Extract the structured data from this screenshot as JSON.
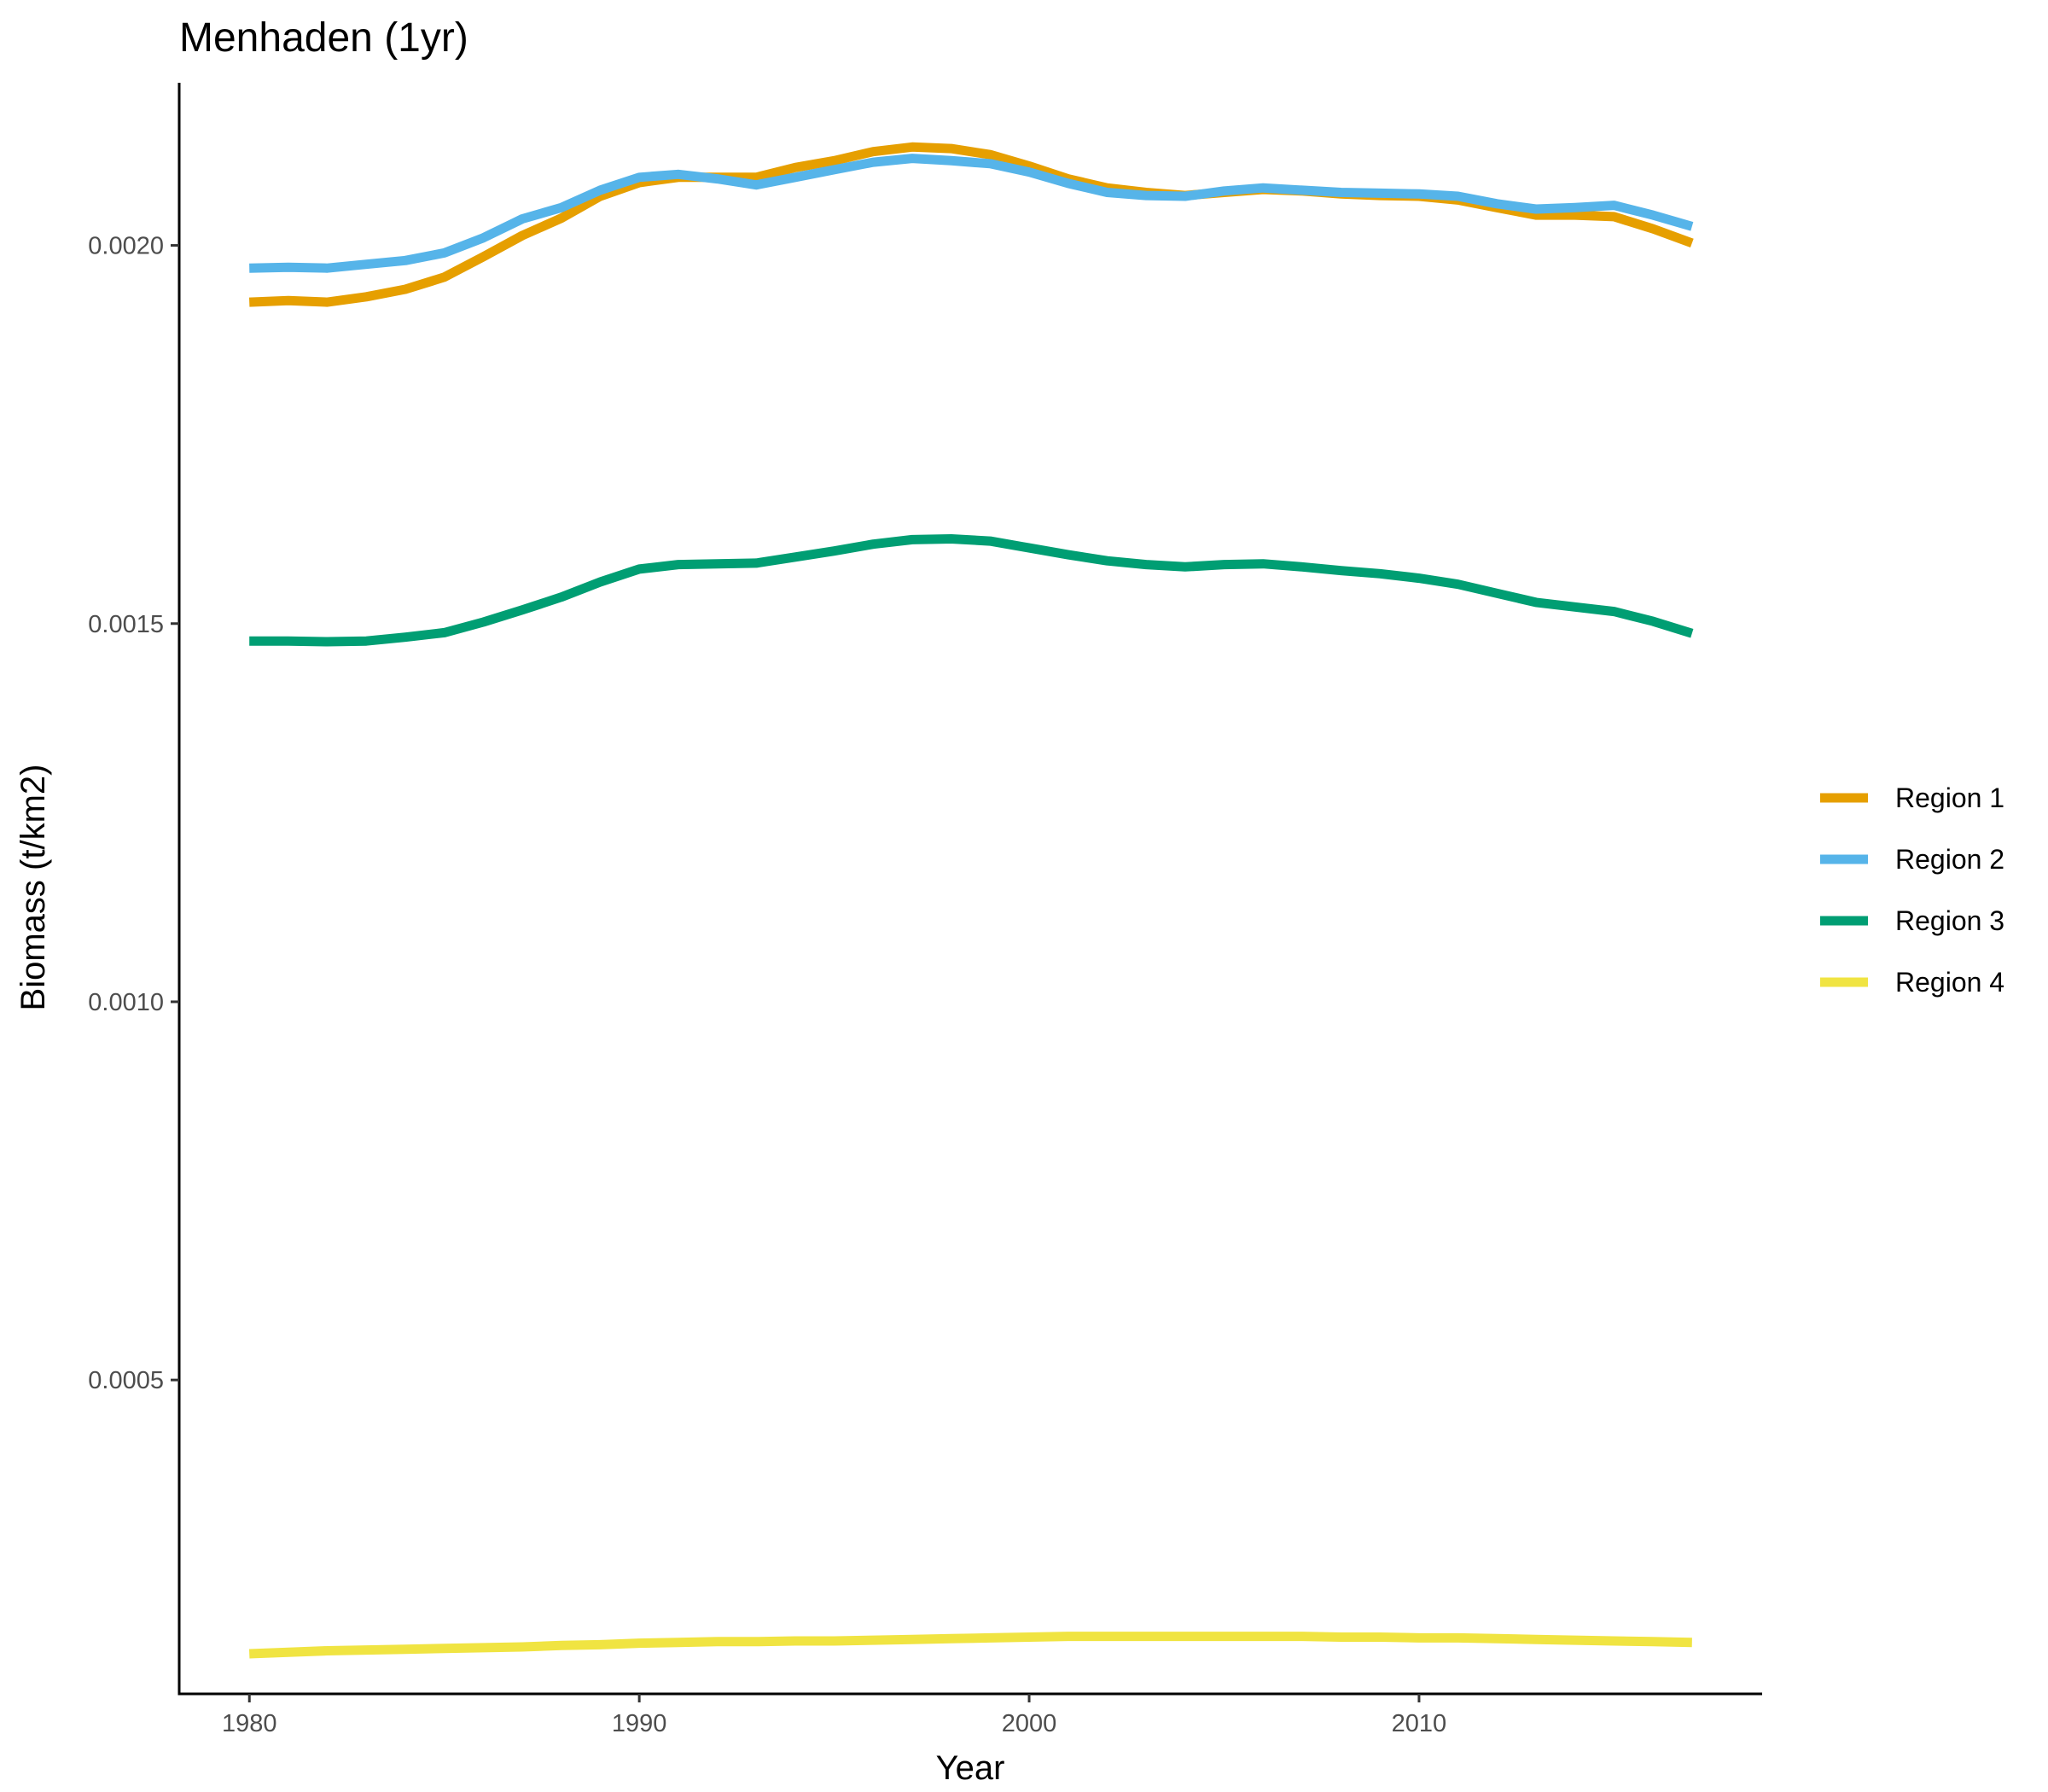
{
  "chart_data": {
    "type": "line",
    "title": "Menhaden (1yr)",
    "xlabel": "Year",
    "ylabel": "Biomass (t/km2)",
    "xlim": [
      1978.2,
      2018.8
    ],
    "ylim": [
      8.5e-05,
      0.002215
    ],
    "x_ticks": [
      1980,
      1990,
      2000,
      2010
    ],
    "x_tick_labels": [
      "1980",
      "1990",
      "2000",
      "2010"
    ],
    "y_ticks": [
      0.0005,
      0.001,
      0.0015,
      0.002
    ],
    "y_tick_labels": [
      "0.0005",
      "0.0010",
      "0.0015",
      "0.0020"
    ],
    "grid": false,
    "legend_position": "right",
    "x": [
      1980,
      1981,
      1982,
      1983,
      1984,
      1985,
      1986,
      1987,
      1988,
      1989,
      1990,
      1991,
      1992,
      1993,
      1994,
      1995,
      1996,
      1997,
      1998,
      1999,
      2000,
      2001,
      2002,
      2003,
      2004,
      2005,
      2006,
      2007,
      2008,
      2009,
      2010,
      2011,
      2012,
      2013,
      2014,
      2015,
      2016,
      2017
    ],
    "series": [
      {
        "name": "Region 1",
        "color": "#E69F00",
        "values": [
          0.001925,
          0.001927,
          0.001925,
          0.001932,
          0.001942,
          0.001958,
          0.001985,
          0.002013,
          0.002036,
          0.002065,
          0.002083,
          0.00209,
          0.00209,
          0.00209,
          0.002103,
          0.002112,
          0.002124,
          0.00213,
          0.002128,
          0.00212,
          0.002105,
          0.002088,
          0.002076,
          0.00207,
          0.002066,
          0.00207,
          0.002074,
          0.002072,
          0.002068,
          0.002066,
          0.002065,
          0.00206,
          0.00205,
          0.00204,
          0.00204,
          0.002038,
          0.002022,
          0.002003
        ]
      },
      {
        "name": "Region 2",
        "color": "#56B4E9",
        "values": [
          0.00197,
          0.001971,
          0.00197,
          0.001975,
          0.00198,
          0.00199,
          0.00201,
          0.002035,
          0.00205,
          0.002073,
          0.00209,
          0.002094,
          0.002088,
          0.00208,
          0.00209,
          0.0021,
          0.00211,
          0.002115,
          0.002112,
          0.002108,
          0.002097,
          0.002082,
          0.00207,
          0.002066,
          0.002065,
          0.002072,
          0.002076,
          0.002073,
          0.00207,
          0.002069,
          0.002068,
          0.002065,
          0.002055,
          0.002048,
          0.00205,
          0.002053,
          0.00204,
          0.002025
        ]
      },
      {
        "name": "Region 3",
        "color": "#009E73",
        "values": [
          0.001477,
          0.001477,
          0.001476,
          0.001477,
          0.001482,
          0.001488,
          0.001502,
          0.001518,
          0.001535,
          0.001555,
          0.001572,
          0.001578,
          0.001579,
          0.00158,
          0.001588,
          0.001596,
          0.001605,
          0.001611,
          0.001612,
          0.001609,
          0.0016,
          0.001591,
          0.001583,
          0.001578,
          0.001575,
          0.001578,
          0.001579,
          0.001575,
          0.00157,
          0.001566,
          0.00156,
          0.001552,
          0.00154,
          0.001528,
          0.001522,
          0.001516,
          0.001503,
          0.001487
        ]
      },
      {
        "name": "Region 4",
        "color": "#F0E442",
        "values": [
          0.000138,
          0.00014,
          0.000142,
          0.000143,
          0.000144,
          0.000145,
          0.000146,
          0.000147,
          0.000149,
          0.00015,
          0.000152,
          0.000153,
          0.000154,
          0.000154,
          0.000155,
          0.000155,
          0.000156,
          0.000157,
          0.000158,
          0.000159,
          0.00016,
          0.000161,
          0.000161,
          0.000161,
          0.000161,
          0.000161,
          0.000161,
          0.000161,
          0.00016,
          0.00016,
          0.000159,
          0.000159,
          0.000158,
          0.000157,
          0.000156,
          0.000155,
          0.000154,
          0.000153
        ]
      }
    ]
  }
}
